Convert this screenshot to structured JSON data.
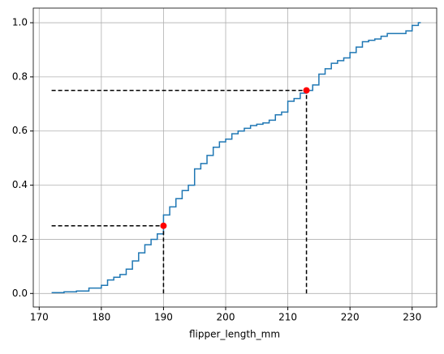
{
  "chart_data": {
    "type": "step",
    "xlabel": "flipper_length_mm",
    "x": [
      172,
      174,
      176,
      178,
      180,
      181,
      182,
      183,
      184,
      185,
      186,
      187,
      188,
      189,
      190,
      191,
      192,
      193,
      194,
      195,
      196,
      197,
      198,
      199,
      200,
      201,
      202,
      203,
      204,
      205,
      206,
      207,
      208,
      209,
      210,
      211,
      212,
      213,
      214,
      215,
      216,
      217,
      218,
      219,
      220,
      221,
      222,
      223,
      224,
      225,
      226,
      228,
      229,
      230,
      231
    ],
    "series": [
      {
        "color": "#1f77b4",
        "values": [
          0.003,
          0.006,
          0.009,
          0.02,
          0.03,
          0.05,
          0.06,
          0.07,
          0.09,
          0.12,
          0.15,
          0.18,
          0.2,
          0.22,
          0.29,
          0.32,
          0.35,
          0.38,
          0.4,
          0.46,
          0.48,
          0.51,
          0.54,
          0.56,
          0.57,
          0.59,
          0.6,
          0.61,
          0.62,
          0.625,
          0.63,
          0.64,
          0.66,
          0.67,
          0.71,
          0.72,
          0.74,
          0.75,
          0.77,
          0.81,
          0.83,
          0.85,
          0.86,
          0.87,
          0.89,
          0.91,
          0.93,
          0.935,
          0.94,
          0.95,
          0.96,
          0.96,
          0.97,
          0.99,
          1.0
        ]
      }
    ],
    "points": {
      "x": [
        190,
        213
      ],
      "y": [
        0.25,
        0.75
      ],
      "color": "#ff0000",
      "line_color": "#000000"
    },
    "xlim": [
      169.05,
      233.95
    ],
    "ylim": [
      -0.05,
      1.054
    ],
    "xticks": [
      170,
      180,
      190,
      200,
      210,
      220,
      230
    ],
    "yticks": [
      {
        "value": 0,
        "label": "0.0"
      },
      {
        "value": 0.2,
        "label": "0.2"
      },
      {
        "value": 0.4,
        "label": "0.4"
      },
      {
        "value": 0.6,
        "label": "0.6"
      },
      {
        "value": 0.8,
        "label": "0.8"
      },
      {
        "value": 1,
        "label": "1.0"
      }
    ],
    "grid": true
  }
}
